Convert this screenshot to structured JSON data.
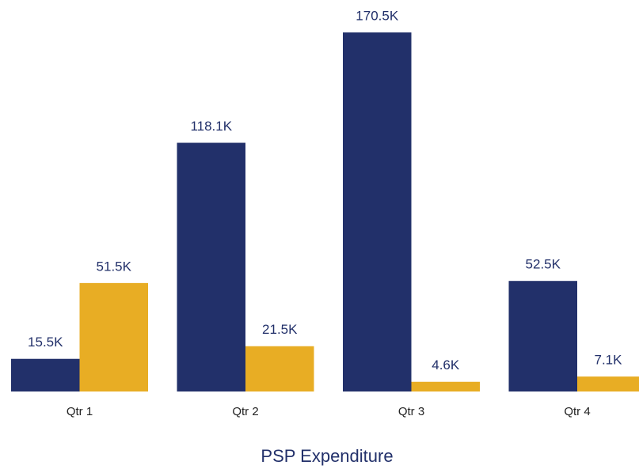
{
  "chart_data": {
    "type": "bar",
    "title": "PSP Expenditure",
    "categories": [
      "Qtr 1",
      "Qtr 2",
      "Qtr 3",
      "Qtr 4"
    ],
    "series": [
      {
        "color": "#22306a",
        "values": [
          15500,
          118100,
          170500,
          52500
        ],
        "value_labels": [
          "15.5K",
          "118.1K",
          "170.5K",
          "52.5K"
        ]
      },
      {
        "color": "#e8ad24",
        "values": [
          51500,
          21500,
          4600,
          7100
        ],
        "value_labels": [
          "51.5K",
          "21.5K",
          "4.6K",
          "7.1K"
        ]
      }
    ]
  }
}
